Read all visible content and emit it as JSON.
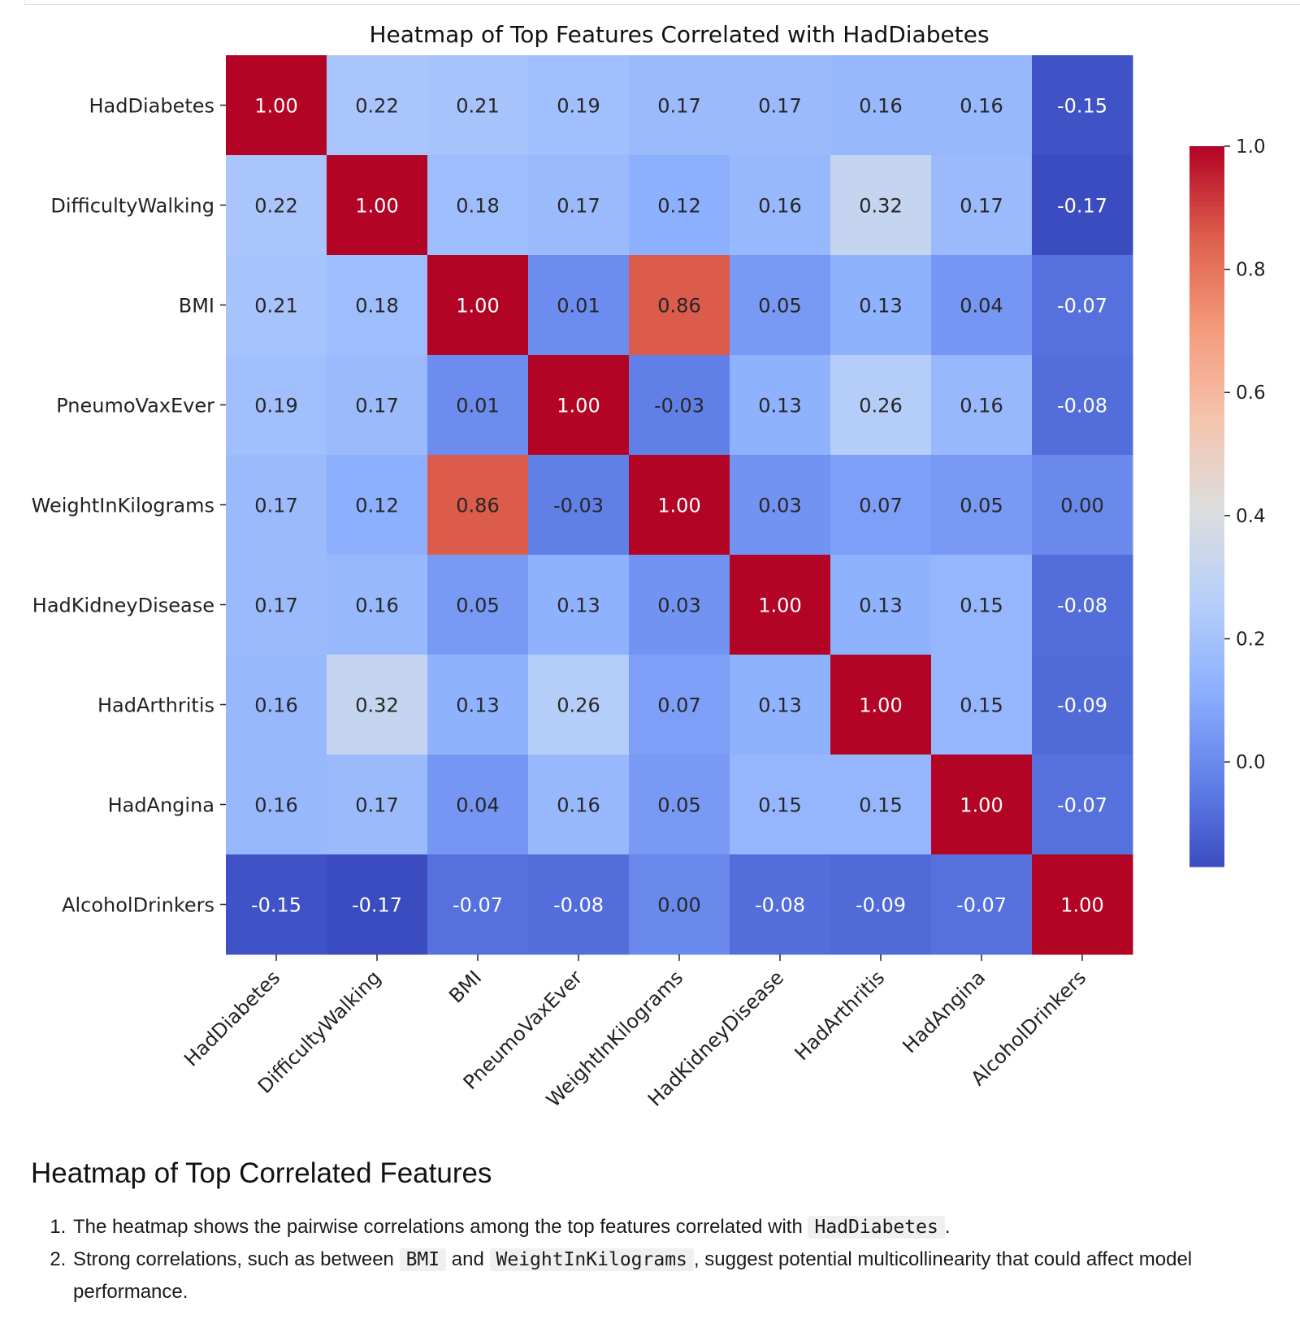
{
  "chart_data": {
    "type": "heatmap",
    "title": "Heatmap of Top Features Correlated with HadDiabetes",
    "labels": [
      "HadDiabetes",
      "DifficultyWalking",
      "BMI",
      "PneumoVaxEver",
      "WeightInKilograms",
      "HadKidneyDisease",
      "HadArthritis",
      "HadAngina",
      "AlcoholDrinkers"
    ],
    "matrix": [
      [
        1.0,
        0.22,
        0.21,
        0.19,
        0.17,
        0.17,
        0.16,
        0.16,
        -0.15
      ],
      [
        0.22,
        1.0,
        0.18,
        0.17,
        0.12,
        0.16,
        0.32,
        0.17,
        -0.17
      ],
      [
        0.21,
        0.18,
        1.0,
        0.01,
        0.86,
        0.05,
        0.13,
        0.04,
        -0.07
      ],
      [
        0.19,
        0.17,
        0.01,
        1.0,
        -0.03,
        0.13,
        0.26,
        0.16,
        -0.08
      ],
      [
        0.17,
        0.12,
        0.86,
        -0.03,
        1.0,
        0.03,
        0.07,
        0.05,
        0.0
      ],
      [
        0.17,
        0.16,
        0.05,
        0.13,
        0.03,
        1.0,
        0.13,
        0.15,
        -0.08
      ],
      [
        0.16,
        0.32,
        0.13,
        0.26,
        0.07,
        0.13,
        1.0,
        0.15,
        -0.09
      ],
      [
        0.16,
        0.17,
        0.04,
        0.16,
        0.05,
        0.15,
        0.15,
        1.0,
        -0.07
      ],
      [
        -0.15,
        -0.17,
        -0.07,
        -0.08,
        0.0,
        -0.08,
        -0.09,
        -0.07,
        1.0
      ]
    ],
    "colormap": "coolwarm",
    "vmin": -0.17,
    "vmax": 1.0,
    "annotated": true,
    "value_format": "0.00",
    "colorbar": {
      "ticks": [
        0.0,
        0.2,
        0.4,
        0.6,
        0.8,
        1.0
      ],
      "tick_labels": [
        "0.0",
        "0.2",
        "0.4",
        "0.6",
        "0.8",
        "1.0"
      ],
      "placement": "right"
    },
    "grid": false
  },
  "markdown": {
    "heading": "Heatmap of Top Correlated Features",
    "item1": {
      "text_before": "The heatmap shows the pairwise correlations among the top features correlated with",
      "code": "HadDiabetes",
      "text_after": "."
    },
    "item2": {
      "text_before": "Strong correlations, such as between",
      "code1": "BMI",
      "text_mid": "and",
      "code2": "WeightInKilograms",
      "text_after": ", suggest potential multicollinearity that could affect model performance."
    }
  }
}
